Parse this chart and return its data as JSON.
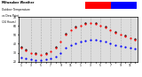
{
  "title_line1": "Milwaukee Weather",
  "title_line2": "Outdoor Temperature",
  "title_line3": "vs Dew Point",
  "title_line4": "(24 Hours)",
  "bg_color": "#ffffff",
  "plot_bg": "#dddddd",
  "grid_color": "#aaaaaa",
  "legend_temp_color": "#ff0000",
  "legend_dew_color": "#0000ff",
  "temp_color": "#ff0000",
  "dew_color": "#0000ff",
  "black_color": "#000000",
  "ylim": [
    20,
    70
  ],
  "yticks": [
    20,
    30,
    40,
    50,
    60,
    70
  ],
  "ytick_labels": [
    "20",
    "30",
    "40",
    "50",
    "60",
    "70"
  ],
  "temp_data": [
    [
      0,
      35
    ],
    [
      1,
      32
    ],
    [
      2,
      30
    ],
    [
      3,
      29
    ],
    [
      4,
      28
    ],
    [
      5,
      29
    ],
    [
      6,
      31
    ],
    [
      7,
      35
    ],
    [
      8,
      42
    ],
    [
      9,
      50
    ],
    [
      10,
      55
    ],
    [
      11,
      58
    ],
    [
      12,
      60
    ],
    [
      13,
      62
    ],
    [
      14,
      63
    ],
    [
      15,
      62
    ],
    [
      16,
      60
    ],
    [
      17,
      58
    ],
    [
      18,
      55
    ],
    [
      19,
      52
    ],
    [
      20,
      50
    ],
    [
      21,
      48
    ],
    [
      22,
      46
    ],
    [
      23,
      44
    ]
  ],
  "dew_data": [
    [
      0,
      25
    ],
    [
      1,
      24
    ],
    [
      2,
      23
    ],
    [
      3,
      22
    ],
    [
      4,
      22
    ],
    [
      5,
      23
    ],
    [
      6,
      24
    ],
    [
      7,
      26
    ],
    [
      8,
      30
    ],
    [
      9,
      35
    ],
    [
      10,
      38
    ],
    [
      11,
      40
    ],
    [
      12,
      42
    ],
    [
      13,
      43
    ],
    [
      14,
      44
    ],
    [
      15,
      44
    ],
    [
      16,
      43
    ],
    [
      17,
      42
    ],
    [
      18,
      40
    ],
    [
      19,
      38
    ],
    [
      20,
      37
    ],
    [
      21,
      36
    ],
    [
      22,
      35
    ],
    [
      23,
      34
    ]
  ],
  "black_data": [
    [
      0,
      36
    ],
    [
      1,
      33
    ],
    [
      3,
      30
    ],
    [
      5,
      30
    ],
    [
      7,
      36
    ],
    [
      9,
      51
    ],
    [
      11,
      59
    ],
    [
      13,
      63
    ],
    [
      15,
      63
    ],
    [
      17,
      59
    ],
    [
      19,
      53
    ],
    [
      21,
      49
    ],
    [
      23,
      45
    ]
  ],
  "vline_positions": [
    2,
    4,
    6,
    8,
    10,
    12,
    14,
    16,
    18,
    20,
    22
  ],
  "xtick_positions": [
    0,
    1,
    2,
    3,
    4,
    5,
    6,
    7,
    8,
    9,
    10,
    11,
    12,
    13,
    14,
    15,
    16,
    17,
    18,
    19,
    20,
    21,
    22,
    23
  ],
  "xtick_labels": [
    "1",
    "",
    "3",
    "",
    "5",
    "",
    "7",
    "",
    "9",
    "",
    "11",
    "",
    "1",
    "",
    "3",
    "",
    "5",
    "",
    "7",
    "",
    "9",
    "",
    "11",
    ""
  ],
  "xlim": [
    -0.5,
    23.5
  ]
}
